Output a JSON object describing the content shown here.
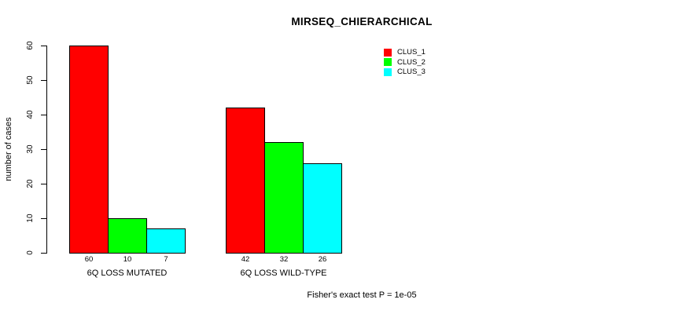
{
  "chart_data": {
    "type": "bar",
    "title": "MIRSEQ_CHIERARCHICAL",
    "xlabel": "",
    "ylabel": "number of cases",
    "ylim": [
      0,
      60
    ],
    "yticks": [
      0,
      10,
      20,
      30,
      40,
      50,
      60
    ],
    "categories": [
      "6Q LOSS MUTATED",
      "6Q LOSS WILD-TYPE"
    ],
    "series": [
      {
        "name": "CLUS_1",
        "color": "#ff0000",
        "values": [
          60,
          42
        ]
      },
      {
        "name": "CLUS_2",
        "color": "#00ff00",
        "values": [
          10,
          32
        ]
      },
      {
        "name": "CLUS_3",
        "color": "#00ffff",
        "values": [
          7,
          26
        ]
      }
    ],
    "show_bar_value_labels": true,
    "bar_value_labels": [
      [
        60,
        10,
        7
      ],
      [
        42,
        32,
        26
      ]
    ],
    "legend": {
      "position": "top-right",
      "entries": [
        "CLUS_1",
        "CLUS_2",
        "CLUS_3"
      ]
    },
    "grid": false,
    "annotation": "Fisher's exact test P = 1e-05",
    "bar_border_color": "#000000",
    "axis_color": "#000000",
    "background": "#ffffff"
  }
}
